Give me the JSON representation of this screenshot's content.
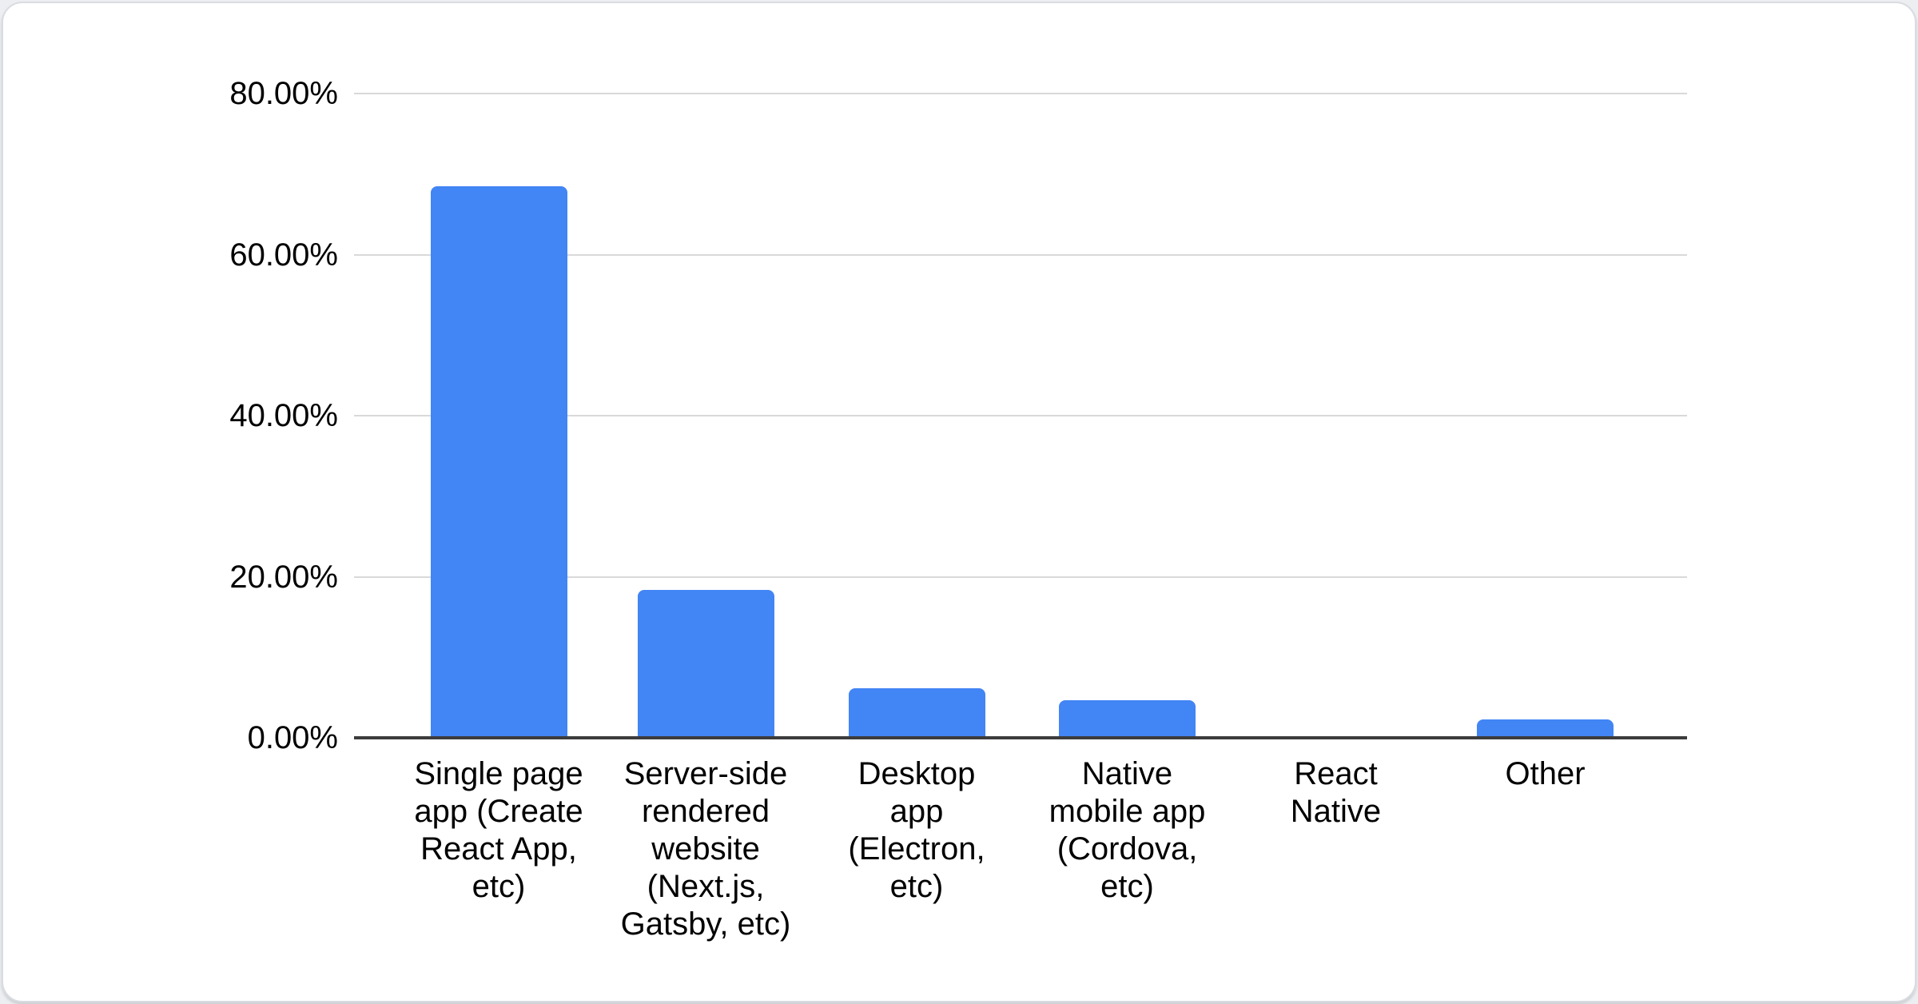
{
  "card": {
    "background": "#ffffff",
    "border_color": "#d9dce1"
  },
  "chart_data": {
    "type": "bar",
    "title": "",
    "xlabel": "",
    "ylabel": "",
    "unit": "%",
    "ylim": [
      0,
      80
    ],
    "grid": true,
    "legend": "none",
    "bar_color": "#4285f4",
    "gridline_color": "#d9d9d9",
    "axis_color": "#3c3c3c",
    "text_color": "#000000",
    "yticks": [
      {
        "value": 80,
        "label": "80.00%"
      },
      {
        "value": 60,
        "label": "60.00%"
      },
      {
        "value": 40,
        "label": "40.00%"
      },
      {
        "value": 20,
        "label": "20.00%"
      },
      {
        "value": 0,
        "label": "0.00%"
      }
    ],
    "categories": [
      "Single page app (Create React App, etc)",
      "Server-side rendered website (Next.js, Gatsby, etc)",
      "Desktop app (Electron, etc)",
      "Native mobile app (Cordova, etc)",
      "React Native",
      "Other"
    ],
    "category_lines": [
      [
        "Single page",
        "app (Create",
        "React App,",
        "etc)"
      ],
      [
        "Server-side",
        "rendered",
        "website",
        "(Next.js,",
        "Gatsby, etc)"
      ],
      [
        "Desktop",
        "app",
        "(Electron,",
        "etc)"
      ],
      [
        "Native",
        "mobile app",
        "(Cordova,",
        "etc)"
      ],
      [
        "React",
        "Native"
      ],
      [
        "Other"
      ]
    ],
    "values": [
      68.5,
      18.4,
      6.2,
      4.7,
      0,
      2.3
    ]
  }
}
